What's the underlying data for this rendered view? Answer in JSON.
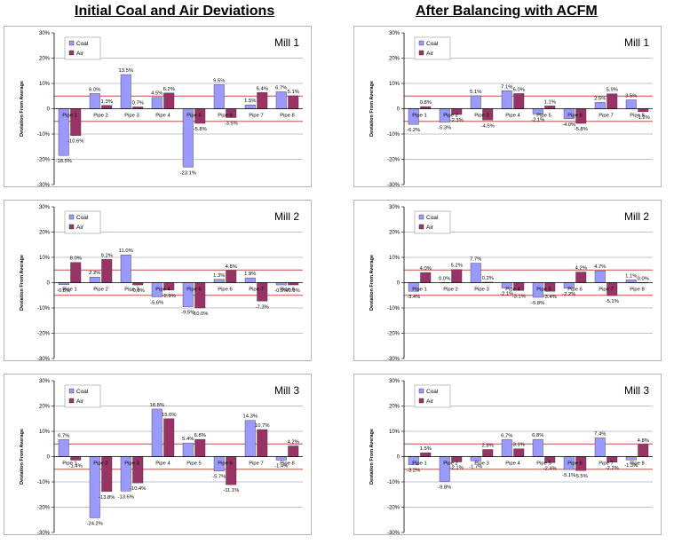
{
  "headings": {
    "left": "Initial Coal and Air Deviations",
    "right": "After Balancing with ACFM"
  },
  "colors": {
    "coal": "#9999ff",
    "air": "#993366",
    "band_line": "#c0504d",
    "grid_line": "#8080c0"
  },
  "chart_data": [
    {
      "type": "bar",
      "title": "Mill 1",
      "ylabel": "Deviation From Average",
      "ylim": [
        -30,
        30
      ],
      "yticks": [
        "30%",
        "20%",
        "10%",
        "0",
        "-10%",
        "-20%",
        "-30%"
      ],
      "legend": "top-left",
      "categories": [
        "Pipe 1",
        "Pipe 2",
        "Pipe 3",
        "Pipe 4",
        "Pipe 5",
        "Pipe 6",
        "Pipe 7",
        "Pipe 8"
      ],
      "series": [
        {
          "name": "Coal",
          "values": [
            -18.5,
            6.0,
            13.5,
            4.5,
            -23.1,
            9.5,
            1.5,
            6.7
          ],
          "labels": [
            "-18.5%",
            "6.0%",
            "13.5%",
            "4.5%",
            "-23.1%",
            "9.5%",
            "1.5%",
            "6.7%"
          ]
        },
        {
          "name": "Air",
          "values": [
            -10.6,
            1.3,
            0.7,
            6.2,
            -5.8,
            -3.5,
            6.4,
            5.1
          ],
          "labels": [
            "-10.6%",
            "1.3%",
            "0.7%",
            "6.2%",
            "-5.8%",
            "-3.5%",
            "6.4%",
            "5.1%"
          ]
        }
      ]
    },
    {
      "type": "bar",
      "title": "Mill 2",
      "ylabel": "Deviation From Average",
      "ylim": [
        -30,
        30
      ],
      "yticks": [
        "30%",
        "20%",
        "10%",
        "0",
        "-10%",
        "-20%",
        "-30%"
      ],
      "legend": "top-left",
      "categories": [
        "Pipe 1",
        "Pipe 2",
        "Pipe 3",
        "Pipe 4",
        "Pipe 5",
        "Pipe 6",
        "Pipe 7",
        "Pipe 8"
      ],
      "series": [
        {
          "name": "Coal",
          "values": [
            -0.8,
            2.2,
            11.0,
            -5.6,
            -9.5,
            1.3,
            1.9,
            -0.9
          ],
          "labels": [
            "-0.8%",
            "2.2%",
            "11.0%",
            "-5.6%",
            "-9.5%",
            "1.3%",
            "1.9%",
            "-0.9%"
          ]
        },
        {
          "name": "Air",
          "values": [
            8.0,
            9.2,
            -0.9,
            -2.9,
            -10.0,
            4.8,
            -7.3,
            -0.9
          ],
          "labels": [
            "8.0%",
            "9.2%",
            "-0.9%",
            "-2.9%",
            "-10.0%",
            "4.8%",
            "-7.3%",
            "-0.9%"
          ]
        }
      ]
    },
    {
      "type": "bar",
      "title": "Mill 3",
      "ylabel": "Deviation From Average",
      "ylim": [
        -30,
        30
      ],
      "yticks": [
        "30%",
        "20%",
        "10%",
        "0",
        "-10%",
        "-20%",
        "-30%"
      ],
      "legend": "top-left",
      "categories": [
        "Pipe 1",
        "Pipe 2",
        "Pipe 3",
        "Pipe 4",
        "Pipe 5",
        "Pipe 6",
        "Pipe 7",
        "Pipe 8"
      ],
      "series": [
        {
          "name": "Coal",
          "values": [
            6.7,
            -24.2,
            -13.6,
            18.8,
            5.4,
            -5.7,
            14.3,
            -1.4
          ],
          "labels": [
            "6.7%",
            "-24.2%",
            "-13.6%",
            "18.8%",
            "5.4%",
            "-5.7%",
            "14.3%",
            "-1.4%"
          ]
        },
        {
          "name": "Air",
          "values": [
            -1.4,
            -13.8,
            -10.4,
            15.0,
            6.8,
            -11.1,
            10.7,
            4.2
          ],
          "labels": [
            "-1.4%",
            "-13.8%",
            "-10.4%",
            "15.0%",
            "6.8%",
            "-11.1%",
            "10.7%",
            "4.2%"
          ]
        }
      ]
    },
    {
      "type": "bar",
      "title": "Mill 1",
      "ylabel": "Deviation From Average",
      "ylim": [
        -30,
        30
      ],
      "yticks": [
        "30%",
        "20%",
        "10%",
        "0",
        "-10%",
        "-20%",
        "-30%"
      ],
      "legend": "top-left",
      "categories": [
        "Pipe 1",
        "Pipe 2",
        "Pipe 3",
        "Pipe 4",
        "Pipe 5",
        "Pipe 6",
        "Pipe 7",
        "Pipe 8"
      ],
      "series": [
        {
          "name": "Coal",
          "values": [
            -6.2,
            -5.3,
            5.1,
            7.1,
            -2.1,
            -4.0,
            2.5,
            3.5
          ],
          "labels": [
            "-6.2%",
            "-5.3%",
            "5.1%",
            "7.1%",
            "-2.1%",
            "-4.0%",
            "2.5%",
            "3.5%"
          ]
        },
        {
          "name": "Air",
          "values": [
            0.8,
            -2.3,
            -4.5,
            6.0,
            1.1,
            -5.8,
            5.9,
            -1.2
          ],
          "labels": [
            "0.8%",
            "-2.3%",
            "-4.5%",
            "6.0%",
            "1.1%",
            "-5.8%",
            "5.9%",
            "-1.2%"
          ]
        }
      ]
    },
    {
      "type": "bar",
      "title": "Mill 2",
      "ylabel": "Deviation From Average",
      "ylim": [
        -30,
        30
      ],
      "yticks": [
        "30%",
        "20%",
        "10%",
        "0",
        "-10%",
        "-20%",
        "-30%"
      ],
      "legend": "top-left",
      "categories": [
        "Pipe 1",
        "Pipe 2",
        "Pipe 3",
        "Pipe 4",
        "Pipe 5",
        "Pipe 6",
        "Pipe 7",
        "Pipe 8"
      ],
      "series": [
        {
          "name": "Coal",
          "values": [
            -3.4,
            0.0,
            7.7,
            -2.1,
            -5.8,
            -2.2,
            4.7,
            1.1
          ],
          "labels": [
            "-3.4%",
            "0.0%",
            "7.7%",
            "-2.1%",
            "-5.8%",
            "-2.2%",
            "4.7%",
            "1.1%"
          ]
        },
        {
          "name": "Air",
          "values": [
            4.0,
            5.2,
            0.2,
            -3.1,
            -3.4,
            4.2,
            -5.1,
            0.0
          ],
          "labels": [
            "4.0%",
            "5.2%",
            "0.2%",
            "-3.1%",
            "-3.4%",
            "4.2%",
            "-5.1%",
            "0.0%"
          ]
        }
      ]
    },
    {
      "type": "bar",
      "title": "Mill 3",
      "ylabel": "Deviation From Average",
      "ylim": [
        -30,
        30
      ],
      "yticks": [
        "30%",
        "20%",
        "10%",
        "0",
        "-10%",
        "-20%",
        "-30%"
      ],
      "legend": "top-left",
      "categories": [
        "Pipe 1",
        "Pipe 2",
        "Pipe 3",
        "Pipe 4",
        "Pipe 5",
        "Pipe 6",
        "Pipe 7",
        "Pipe 8"
      ],
      "series": [
        {
          "name": "Coal",
          "values": [
            -3.2,
            -9.8,
            -1.7,
            6.7,
            6.8,
            -5.1,
            7.4,
            -1.3
          ],
          "labels": [
            "-3.2%",
            "-9.8%",
            "-1.7%",
            "6.7%",
            "6.8%",
            "-5.1%",
            "7.4%",
            "-1.3%"
          ]
        },
        {
          "name": "Air",
          "values": [
            1.5,
            -2.1,
            2.8,
            3.1,
            -2.4,
            -5.5,
            -2.2,
            4.8
          ],
          "labels": [
            "1.5%",
            "-2.1%",
            "2.8%",
            "3.1%",
            "-2.4%",
            "-5.5%",
            "-2.2%",
            "4.8%"
          ]
        }
      ]
    }
  ]
}
